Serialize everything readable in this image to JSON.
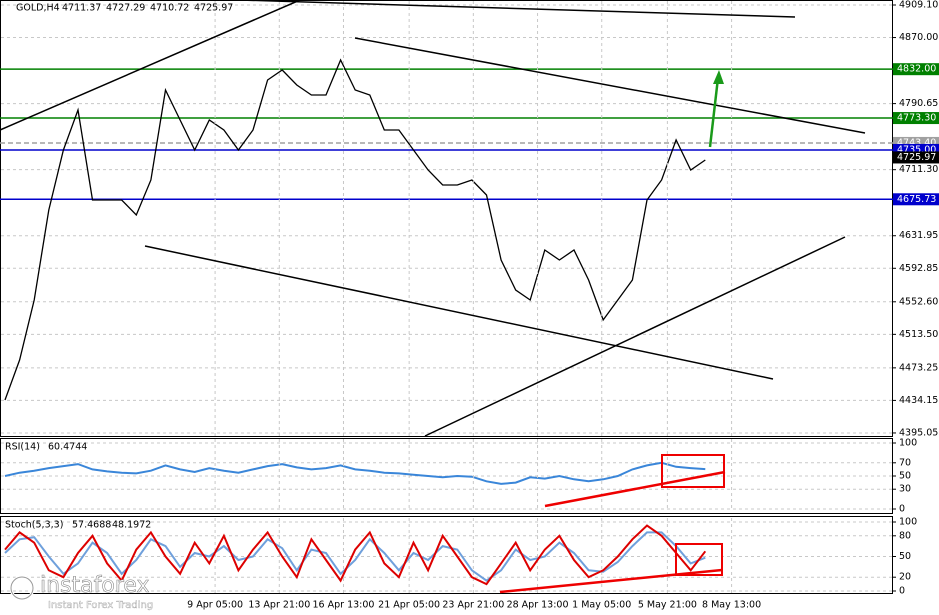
{
  "chart_data": [
    {
      "type": "line",
      "symbol": "GOLD,H4",
      "ohlc": [
        4711.37,
        4727.29,
        4710.72,
        4725.97
      ],
      "ylim": [
        4391.4,
        4915.1
      ],
      "xlim": [
        0,
        61
      ],
      "yticks": [
        {
          "value": 4909.1,
          "label": "4909.10"
        },
        {
          "value": 4870,
          "label": "4870.00"
        },
        4790.65,
        {
          "value": 4711.3,
          "label": "4711.30"
        },
        4631.95,
        4592.85,
        {
          "value": 4552.6,
          "label": "4552.60"
        },
        {
          "value": 4513.5,
          "label": "4513.50"
        },
        4473.25,
        4434.15,
        4395.05
      ],
      "levels": [
        {
          "value": 4832,
          "label": "4832.00",
          "color": "#008000"
        },
        {
          "value": 4773.3,
          "label": "4773.30",
          "color": "#008000"
        },
        {
          "value": 4743.4,
          "label": "4743.40",
          "color": "#a0a0a0"
        },
        {
          "value": 4735,
          "label": "4735.00",
          "color": "#0000cc"
        },
        {
          "value": 4675.73,
          "label": "4675.73",
          "color": "#0000cc"
        }
      ],
      "series": [
        {
          "name": "Close",
          "color": "#000000",
          "values": [
            4434.7,
            4482.7,
            4554.8,
            4662.9,
            4734.9,
            4783.0,
            4674.9,
            4674.9,
            4674.9,
            4656.9,
            4698.9,
            4807.0,
            4771.0,
            4734.9,
            4771.0,
            4759.0,
            4734.9,
            4759.0,
            4819.0,
            4831.0,
            4813.0,
            4801.0,
            4801.0,
            4843.0,
            4807.0,
            4801.0,
            4759.0,
            4759.0,
            4734.9,
            4710.9,
            4692.9,
            4692.9,
            4698.9,
            4680.9,
            4602.8,
            4566.8,
            4554.8,
            4614.8,
            4602.8,
            4614.8,
            4578.8,
            4530.8,
            4554.8,
            4578.8,
            4674.9,
            4698.9,
            4747.0,
            4710.9,
            4722.9
          ]
        }
      ]
    },
    {
      "type": "line",
      "name": "RSI(14)",
      "ylim": [
        0,
        100
      ],
      "xlim": [
        0,
        61
      ],
      "yticks": [
        100,
        70,
        50,
        30,
        0
      ],
      "series": [
        {
          "color": "#3a86d9",
          "values": [
            50,
            55,
            58,
            62,
            65,
            68,
            60,
            57,
            55,
            54,
            58,
            66,
            60,
            56,
            62,
            58,
            55,
            60,
            65,
            68,
            63,
            60,
            62,
            66,
            60,
            58,
            55,
            54,
            52,
            50,
            48,
            50,
            49,
            42,
            38,
            40,
            48,
            46,
            50,
            45,
            42,
            45,
            50,
            60,
            66,
            70,
            64,
            62,
            60.4744
          ]
        }
      ]
    },
    {
      "type": "line",
      "name": "Stoch(5,3,3)",
      "ylim": [
        0,
        100
      ],
      "xlim": [
        0,
        61
      ],
      "yticks": [
        100,
        80,
        50,
        20,
        0
      ],
      "xticks": [
        {
          "value": 14.4,
          "label": "9 Apr 05:00"
        },
        {
          "value": 18.8,
          "label": "13 Apr 21:00"
        },
        {
          "value": 23.2,
          "label": "16 Apr 13:00"
        },
        {
          "value": 27.7,
          "label": "21 Apr 05:00"
        },
        {
          "value": 32.1,
          "label": "23 Apr 21:00"
        },
        {
          "value": 36.5,
          "label": "28 Apr 13:00"
        },
        {
          "value": 40.9,
          "label": "1 May 05:00"
        },
        {
          "value": 45.4,
          "label": "5 May 21:00"
        },
        {
          "value": 49.8,
          "label": "8 May 13:00"
        }
      ],
      "series": [
        {
          "color": "#6fa0dc",
          "values": [
            55,
            75,
            78,
            50,
            25,
            40,
            70,
            55,
            25,
            45,
            75,
            65,
            35,
            55,
            50,
            65,
            45,
            50,
            75,
            62,
            30,
            60,
            55,
            25,
            45,
            75,
            55,
            30,
            55,
            45,
            65,
            60,
            30,
            15,
            30,
            60,
            45,
            50,
            70,
            55,
            30,
            28,
            42,
            65,
            85,
            85,
            65,
            40,
            48.1972
          ]
        },
        {
          "color": "#dd0000",
          "values": [
            60,
            85,
            70,
            30,
            20,
            55,
            80,
            40,
            15,
            60,
            85,
            50,
            25,
            70,
            40,
            80,
            30,
            60,
            85,
            50,
            20,
            75,
            45,
            15,
            60,
            85,
            40,
            20,
            70,
            30,
            80,
            50,
            20,
            10,
            40,
            70,
            30,
            60,
            80,
            45,
            20,
            30,
            50,
            75,
            95,
            80,
            55,
            30,
            57.4688
          ]
        }
      ]
    }
  ],
  "logo": {
    "brand": "instaforex",
    "tagline": "Instant Forex Trading"
  }
}
